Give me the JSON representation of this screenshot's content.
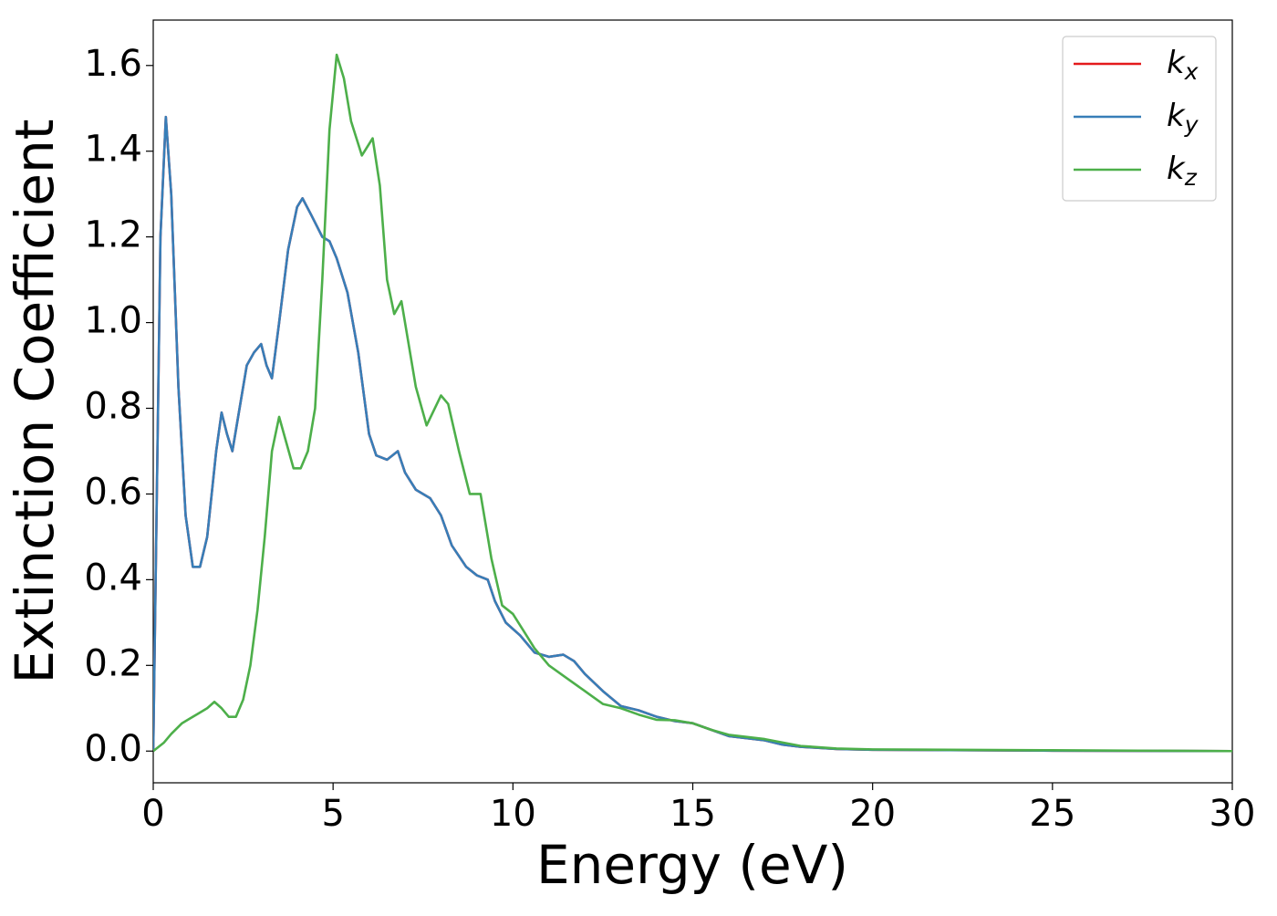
{
  "chart_data": {
    "type": "line",
    "xlabel": "Energy (eV)",
    "ylabel": "Extinction Coefficient",
    "xlim": [
      0,
      30
    ],
    "ylim": [
      -0.074,
      1.706
    ],
    "xticks": [
      0,
      5,
      10,
      15,
      20,
      25,
      30
    ],
    "yticks": [
      {
        "value": 0,
        "label": "0.0"
      },
      0.2,
      0.4,
      0.6,
      0.8,
      {
        "value": 1,
        "label": "1.0"
      },
      1.2,
      1.4,
      1.6
    ],
    "grid": false,
    "legend": "upper right",
    "series": [
      {
        "name": "kx",
        "color": "#e41a1c",
        "x": [
          0,
          0.1,
          0.2,
          0.35,
          0.5,
          0.7,
          0.9,
          1.1,
          1.3,
          1.5,
          1.75,
          1.9,
          2.05,
          2.2,
          2.4,
          2.6,
          2.8,
          3.0,
          3.15,
          3.3,
          3.5,
          3.75,
          4.0,
          4.15,
          4.4,
          4.7,
          4.9,
          5.1,
          5.4,
          5.7,
          6.0,
          6.2,
          6.5,
          6.8,
          7.0,
          7.3,
          7.7,
          8.0,
          8.3,
          8.7,
          9.0,
          9.3,
          9.5,
          9.8,
          10.2,
          10.6,
          11.0,
          11.4,
          11.7,
          12.0,
          12.5,
          13.0,
          13.5,
          14.0,
          14.5,
          15.0,
          15.5,
          16.0,
          17.0,
          17.5,
          18,
          19,
          20,
          25,
          30
        ],
        "values": [
          0.0,
          0.6,
          1.2,
          1.48,
          1.3,
          0.85,
          0.55,
          0.43,
          0.43,
          0.5,
          0.7,
          0.79,
          0.74,
          0.7,
          0.8,
          0.9,
          0.93,
          0.95,
          0.9,
          0.87,
          1.0,
          1.17,
          1.27,
          1.29,
          1.25,
          1.2,
          1.19,
          1.15,
          1.07,
          0.93,
          0.74,
          0.69,
          0.68,
          0.7,
          0.65,
          0.61,
          0.59,
          0.55,
          0.48,
          0.43,
          0.41,
          0.4,
          0.35,
          0.3,
          0.27,
          0.23,
          0.22,
          0.225,
          0.21,
          0.18,
          0.14,
          0.105,
          0.095,
          0.08,
          0.07,
          0.065,
          0.05,
          0.035,
          0.025,
          0.015,
          0.01,
          0.005,
          0.003,
          0.001,
          0.0
        ]
      },
      {
        "name": "ky",
        "color": "#377eb8",
        "x": [
          0,
          0.1,
          0.2,
          0.35,
          0.5,
          0.7,
          0.9,
          1.1,
          1.3,
          1.5,
          1.75,
          1.9,
          2.05,
          2.2,
          2.4,
          2.6,
          2.8,
          3.0,
          3.15,
          3.3,
          3.5,
          3.75,
          4.0,
          4.15,
          4.4,
          4.7,
          4.9,
          5.1,
          5.4,
          5.7,
          6.0,
          6.2,
          6.5,
          6.8,
          7.0,
          7.3,
          7.7,
          8.0,
          8.3,
          8.7,
          9.0,
          9.3,
          9.5,
          9.8,
          10.2,
          10.6,
          11.0,
          11.4,
          11.7,
          12.0,
          12.5,
          13.0,
          13.5,
          14.0,
          14.5,
          15.0,
          15.5,
          16.0,
          17.0,
          17.5,
          18,
          19,
          20,
          25,
          30
        ],
        "values": [
          0.0,
          0.6,
          1.2,
          1.48,
          1.3,
          0.85,
          0.55,
          0.43,
          0.43,
          0.5,
          0.7,
          0.79,
          0.74,
          0.7,
          0.8,
          0.9,
          0.93,
          0.95,
          0.9,
          0.87,
          1.0,
          1.17,
          1.27,
          1.29,
          1.25,
          1.2,
          1.19,
          1.15,
          1.07,
          0.93,
          0.74,
          0.69,
          0.68,
          0.7,
          0.65,
          0.61,
          0.59,
          0.55,
          0.48,
          0.43,
          0.41,
          0.4,
          0.35,
          0.3,
          0.27,
          0.23,
          0.22,
          0.225,
          0.21,
          0.18,
          0.14,
          0.105,
          0.095,
          0.08,
          0.07,
          0.065,
          0.05,
          0.035,
          0.025,
          0.015,
          0.01,
          0.005,
          0.003,
          0.001,
          0.0
        ]
      },
      {
        "name": "kz",
        "color": "#4daf4a",
        "x": [
          0,
          0.3,
          0.5,
          0.8,
          1.0,
          1.3,
          1.5,
          1.7,
          1.9,
          2.1,
          2.3,
          2.5,
          2.7,
          2.9,
          3.1,
          3.3,
          3.5,
          3.7,
          3.9,
          4.1,
          4.3,
          4.5,
          4.7,
          4.9,
          5.1,
          5.3,
          5.5,
          5.8,
          6.1,
          6.3,
          6.5,
          6.7,
          6.9,
          7.1,
          7.3,
          7.6,
          8.0,
          8.2,
          8.5,
          8.8,
          9.1,
          9.4,
          9.7,
          10.0,
          10.3,
          10.6,
          11.0,
          11.5,
          12.0,
          12.5,
          13.0,
          13.5,
          14.0,
          14.5,
          15.0,
          15.5,
          16.0,
          17.0,
          17.5,
          18,
          19,
          20,
          25,
          30
        ],
        "values": [
          0.0,
          0.02,
          0.04,
          0.065,
          0.075,
          0.09,
          0.1,
          0.115,
          0.1,
          0.08,
          0.08,
          0.12,
          0.2,
          0.33,
          0.5,
          0.7,
          0.78,
          0.72,
          0.66,
          0.66,
          0.7,
          0.8,
          1.1,
          1.45,
          1.625,
          1.57,
          1.47,
          1.39,
          1.43,
          1.32,
          1.1,
          1.02,
          1.05,
          0.95,
          0.85,
          0.76,
          0.83,
          0.81,
          0.7,
          0.6,
          0.6,
          0.45,
          0.34,
          0.32,
          0.28,
          0.24,
          0.2,
          0.17,
          0.14,
          0.11,
          0.1,
          0.085,
          0.073,
          0.072,
          0.065,
          0.05,
          0.038,
          0.028,
          0.02,
          0.012,
          0.006,
          0.004,
          0.002,
          0.0
        ]
      }
    ]
  }
}
